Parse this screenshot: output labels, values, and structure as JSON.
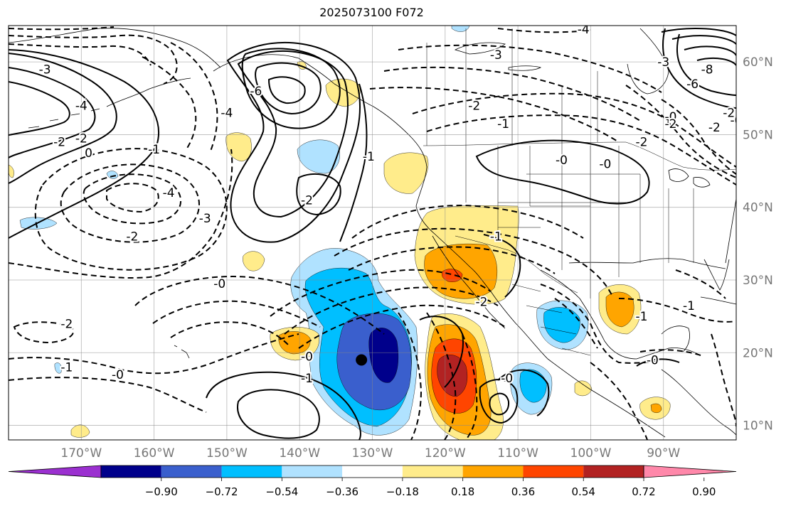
{
  "title": "2025073100 F072",
  "map": {
    "lon_range": [
      -180,
      -80
    ],
    "lat_range": [
      8,
      65
    ],
    "grid": true,
    "lon_ticks": [
      {
        "value": -170,
        "label": "170°W"
      },
      {
        "value": -160,
        "label": "160°W"
      },
      {
        "value": -150,
        "label": "150°W"
      },
      {
        "value": -140,
        "label": "140°W"
      },
      {
        "value": -130,
        "label": "130°W"
      },
      {
        "value": -120,
        "label": "120°W"
      },
      {
        "value": -110,
        "label": "110°W"
      },
      {
        "value": -100,
        "label": "100°W"
      },
      {
        "value": -90,
        "label": "90°W"
      }
    ],
    "lat_ticks": [
      {
        "value": 60,
        "label": "60°N"
      },
      {
        "value": 50,
        "label": "50°N"
      },
      {
        "value": 40,
        "label": "40°N"
      },
      {
        "value": 30,
        "label": "30°N"
      },
      {
        "value": 20,
        "label": "20°N"
      },
      {
        "value": 10,
        "label": "10°N"
      }
    ],
    "marker": {
      "lon": -131.5,
      "lat": 19,
      "color": "#000000"
    },
    "contour_labels": [
      {
        "text": "-3",
        "lon": -175,
        "lat": 59
      },
      {
        "text": "-4",
        "lon": -170,
        "lat": 54
      },
      {
        "text": "-2",
        "lon": -173,
        "lat": 49
      },
      {
        "text": "-2",
        "lon": -170,
        "lat": 49.5
      },
      {
        "text": "0",
        "lon": -169,
        "lat": 47.5
      },
      {
        "text": "-1",
        "lon": -160,
        "lat": 48
      },
      {
        "text": "-4",
        "lon": -158,
        "lat": 42
      },
      {
        "text": "-3",
        "lon": -153,
        "lat": 38.5
      },
      {
        "text": "-2",
        "lon": -163,
        "lat": 36
      },
      {
        "text": "-0",
        "lon": -151,
        "lat": 29.5
      },
      {
        "text": "-2",
        "lon": -172,
        "lat": 24
      },
      {
        "text": "-1",
        "lon": -172,
        "lat": 18
      },
      {
        "text": "-0",
        "lon": -165,
        "lat": 17
      },
      {
        "text": "-6",
        "lon": -146,
        "lat": 56
      },
      {
        "text": "-4",
        "lon": -150,
        "lat": 53
      },
      {
        "text": "-2",
        "lon": -139,
        "lat": 41
      },
      {
        "text": "-1",
        "lon": -130.5,
        "lat": 47
      },
      {
        "text": "-3",
        "lon": -113,
        "lat": 61
      },
      {
        "text": "-2",
        "lon": -116,
        "lat": 54
      },
      {
        "text": "-1",
        "lon": -112,
        "lat": 51.5
      },
      {
        "text": "-0",
        "lon": -104,
        "lat": 46.5
      },
      {
        "text": "-0",
        "lon": -98,
        "lat": 46
      },
      {
        "text": "-2",
        "lon": -93,
        "lat": 49
      },
      {
        "text": "-4",
        "lon": -101,
        "lat": 64.5
      },
      {
        "text": "-3",
        "lon": -90,
        "lat": 60
      },
      {
        "text": "-6",
        "lon": -86,
        "lat": 57
      },
      {
        "text": "-8",
        "lon": -84,
        "lat": 59
      },
      {
        "text": "-0",
        "lon": -89,
        "lat": 52.5
      },
      {
        "text": "-2",
        "lon": -83,
        "lat": 51
      },
      {
        "text": "-0",
        "lon": -80,
        "lat": 52
      },
      {
        "text": "-2",
        "lon": -81,
        "lat": 53
      },
      {
        "text": "-2",
        "lon": -89,
        "lat": 51.5
      },
      {
        "text": "-1",
        "lon": -113,
        "lat": 36
      },
      {
        "text": "-2",
        "lon": -115,
        "lat": 27
      },
      {
        "text": "-0",
        "lon": -139,
        "lat": 19.5
      },
      {
        "text": "-1",
        "lon": -139,
        "lat": 16.5
      },
      {
        "text": "-0",
        "lon": -111.5,
        "lat": 16.5
      },
      {
        "text": "-1",
        "lon": -93,
        "lat": 25
      },
      {
        "text": "-1",
        "lon": -86.5,
        "lat": 26.5
      },
      {
        "text": "-0",
        "lon": -91.5,
        "lat": 19
      }
    ]
  },
  "colorbar": {
    "ticks": [
      "−0.90",
      "−0.72",
      "−0.54",
      "−0.36",
      "−0.18",
      "0.18",
      "0.36",
      "0.54",
      "0.72",
      "0.90"
    ],
    "colors": [
      "#9b30d0",
      "#00008b",
      "#3a5fcd",
      "#00bfff",
      "#b0e2ff",
      "#ffffff",
      "#ffec8b",
      "#ffa500",
      "#ff4500",
      "#b22222",
      "#ff88aa"
    ]
  }
}
